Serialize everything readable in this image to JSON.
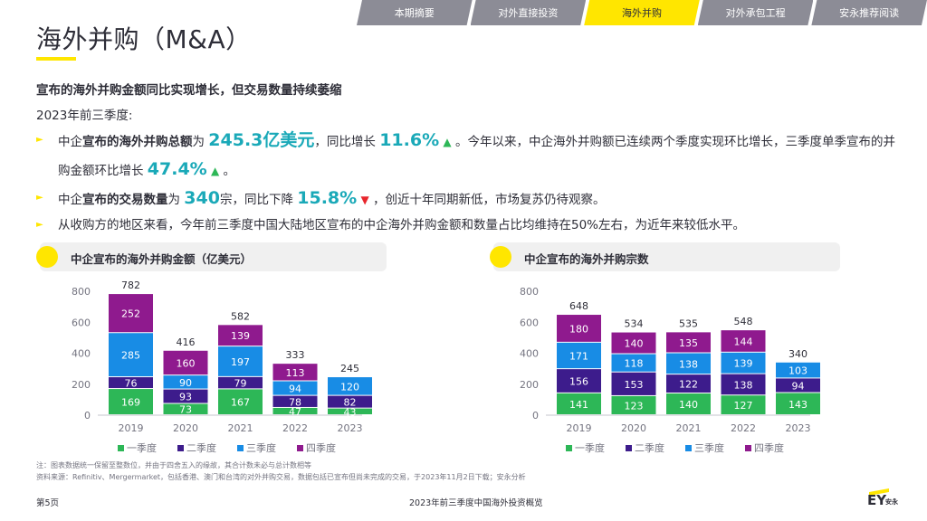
{
  "tabs": [
    {
      "label": "本期摘要",
      "active": false
    },
    {
      "label": "对外直接投资",
      "active": false
    },
    {
      "label": "海外并购",
      "active": true
    },
    {
      "label": "对外承包工程",
      "active": false
    },
    {
      "label": "安永推荐阅读",
      "active": false
    }
  ],
  "page": {
    "title": "海外并购（M&A）",
    "subtitle": "宣布的海外并购金额同比实现增长，但交易数量持续萎缩",
    "period": "2023年前三季度:"
  },
  "bullets": {
    "b1_p1": "中企",
    "b1_k1": "宣布的海外并购总额",
    "b1_p2": "为",
    "b1_h1": "245.3亿美元",
    "b1_p3": "，同比增长",
    "b1_h2": "11.6%",
    "b1_p4": "。今年以来，中企海外并购额已连续两个季度实现环比增长，三季度单季宣布的并购金额环比增长",
    "b1_h3": "47.4%",
    "b1_p5": "。",
    "b2_p1": "中企",
    "b2_k1": "宣布的交易数量",
    "b2_p2": "为",
    "b2_h1": "340",
    "b2_p3": "宗，同比下降",
    "b2_h2": "15.8%",
    "b2_p4": "，创近十年同期新低，市场复苏仍待观察。",
    "b3": "从收购方的地区来看，今年前三季度中国大陆地区宣布的中企海外并购金额和数量占比均维持在50%左右，为近年来较低水平。",
    "up_glyph": "▲",
    "down_glyph": "▼",
    "arrow_glyph": "►"
  },
  "chart_headers": {
    "left": "中企宣布的海外并购金额（亿美元）",
    "right": "中企宣布的海外并购宗数"
  },
  "chart_data": [
    {
      "type": "bar",
      "stacked": true,
      "title": "中企宣布的海外并购金额（亿美元）",
      "categories": [
        "2019",
        "2020",
        "2021",
        "2022",
        "2023"
      ],
      "series": [
        {
          "name": "一季度",
          "color": "#2db757",
          "values": [
            169,
            73,
            167,
            47,
            43
          ]
        },
        {
          "name": "二季度",
          "color": "#3d1c8c",
          "values": [
            76,
            93,
            79,
            78,
            82
          ]
        },
        {
          "name": "三季度",
          "color": "#188ce5",
          "values": [
            285,
            90,
            197,
            94,
            120
          ]
        },
        {
          "name": "四季度",
          "color": "#8f1a8e",
          "values": [
            252,
            160,
            139,
            113,
            null
          ]
        }
      ],
      "totals": [
        782,
        416,
        582,
        333,
        245
      ],
      "yticks": [
        0,
        200,
        400,
        600,
        800
      ],
      "ylim": [
        0,
        800
      ],
      "legend": "bottom"
    },
    {
      "type": "bar",
      "stacked": true,
      "title": "中企宣布的海外并购宗数",
      "categories": [
        "2019",
        "2020",
        "2021",
        "2022",
        "2023"
      ],
      "series": [
        {
          "name": "一季度",
          "color": "#2db757",
          "values": [
            141,
            123,
            140,
            127,
            143
          ]
        },
        {
          "name": "二季度",
          "color": "#3d1c8c",
          "values": [
            156,
            153,
            122,
            138,
            94
          ]
        },
        {
          "name": "三季度",
          "color": "#188ce5",
          "values": [
            171,
            118,
            138,
            139,
            103
          ]
        },
        {
          "name": "四季度",
          "color": "#8f1a8e",
          "values": [
            180,
            140,
            135,
            144,
            null
          ]
        }
      ],
      "totals": [
        648,
        534,
        535,
        548,
        340
      ],
      "yticks": [
        0,
        200,
        400,
        600,
        800
      ],
      "ylim": [
        0,
        800
      ],
      "legend": "bottom"
    }
  ],
  "footer": {
    "note1": "注：图表数据统一保留至整数位，并由于四舍五入的缘故，其合计数未必与总计数相等",
    "note2": "资料来源：Refinitiv、Mergermarket，包括香港、澳门和台湾的对外并购交易，数据包括已宣布但尚未完成的交易，于2023年11月2日下载；安永分析",
    "page_num": "第5页",
    "doc_title": "2023年前三季度中国海外投资概览",
    "logo_text": "EY",
    "logo_cn": "安永"
  },
  "colors": {
    "accent_yellow": "#ffe600",
    "highlight_teal": "#1aa9b8",
    "tab_grey": "#8c8c96"
  }
}
